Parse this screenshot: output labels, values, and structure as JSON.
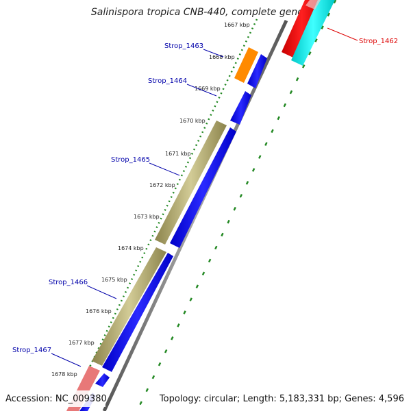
{
  "map": {
    "title": "Salinispora tropica CNB-440, complete genome",
    "accession": "Accession: NC_009380",
    "summary": "Topology: circular; Length: 5,183,331 bp; Genes: 4,596"
  },
  "ticks": [
    {
      "label": "1667 kbp"
    },
    {
      "label": "1668 kbp"
    },
    {
      "label": "1669 kbp"
    },
    {
      "label": "1670 kbp"
    },
    {
      "label": "1671 kbp"
    },
    {
      "label": "1672 kbp"
    },
    {
      "label": "1673 kbp"
    },
    {
      "label": "1674 kbp"
    },
    {
      "label": "1675 kbp"
    },
    {
      "label": "1676 kbp"
    },
    {
      "label": "1677 kbp"
    },
    {
      "label": "1678 kbp"
    }
  ],
  "genes": [
    {
      "name": "Strop_1462",
      "color": "#dd0000"
    },
    {
      "name": "Strop_1463",
      "color": "#0000aa"
    },
    {
      "name": "Strop_1464",
      "color": "#0000aa"
    },
    {
      "name": "Strop_1465",
      "color": "#0000aa"
    },
    {
      "name": "Strop_1466",
      "color": "#0000aa"
    },
    {
      "name": "Strop_1467",
      "color": "#0000aa"
    }
  ],
  "colors": {
    "cds_forward": "#0000ee",
    "cds_reverse": "#ee0000",
    "olive_feature": "#b5ad72",
    "orange_feature": "#ff8800",
    "cyan_feature": "#00e5e5",
    "pink_feature": "#e87878",
    "dotted_ring": "#228822",
    "backbone": "#777777"
  }
}
